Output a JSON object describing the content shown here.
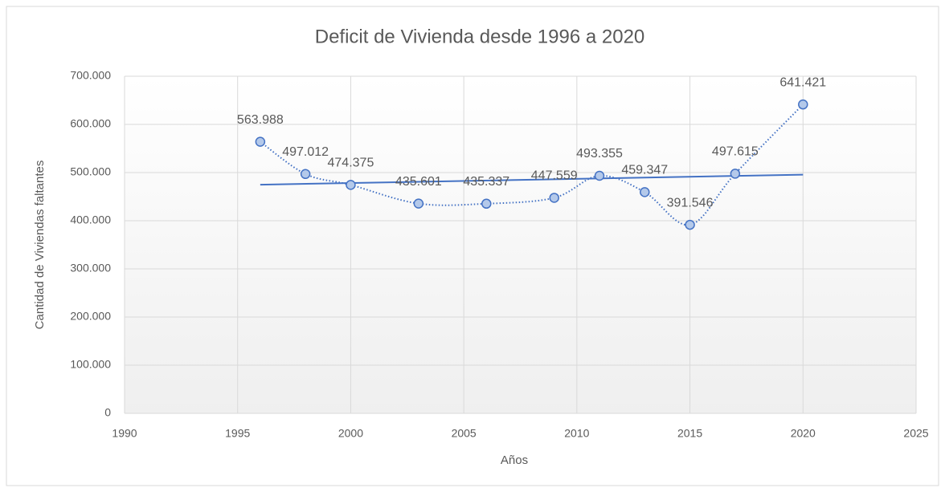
{
  "chart_data": {
    "type": "scatter",
    "title": "Deficit de Vivienda desde 1996 a 2020",
    "xlabel": "Años",
    "ylabel": "Cantidad de Viviendas faltantes",
    "x": [
      1996,
      1998,
      2000,
      2003,
      2006,
      2009,
      2011,
      2013,
      2015,
      2017,
      2020
    ],
    "series": [
      {
        "name": "Deficit de Vivienda",
        "color": "#4472c4",
        "values": [
          563988,
          497012,
          474375,
          435601,
          435337,
          447559,
          493355,
          459347,
          391546,
          497615,
          641421
        ],
        "value_labels": [
          "563.988",
          "497.012",
          "474.375",
          "435.601",
          "435.337",
          "447.559",
          "493.355",
          "459.347",
          "391.546",
          "497.615",
          "641.421"
        ]
      }
    ],
    "trendline": "linear",
    "xlim": [
      1990,
      2025
    ],
    "xticks": [
      1990,
      1995,
      2000,
      2005,
      2010,
      2015,
      2020,
      2025
    ],
    "ylim": [
      0,
      700000
    ],
    "yticks": [
      0,
      {
        "value": 100000,
        "label": "100.000"
      },
      {
        "value": 200000,
        "label": "200.000"
      },
      {
        "value": 300000,
        "label": "300.000"
      },
      {
        "value": 400000,
        "label": "400.000"
      },
      {
        "value": 500000,
        "label": "500.000"
      },
      {
        "value": 600000,
        "label": "600.000"
      },
      {
        "value": 700000,
        "label": "700.000"
      }
    ],
    "grid": true
  }
}
